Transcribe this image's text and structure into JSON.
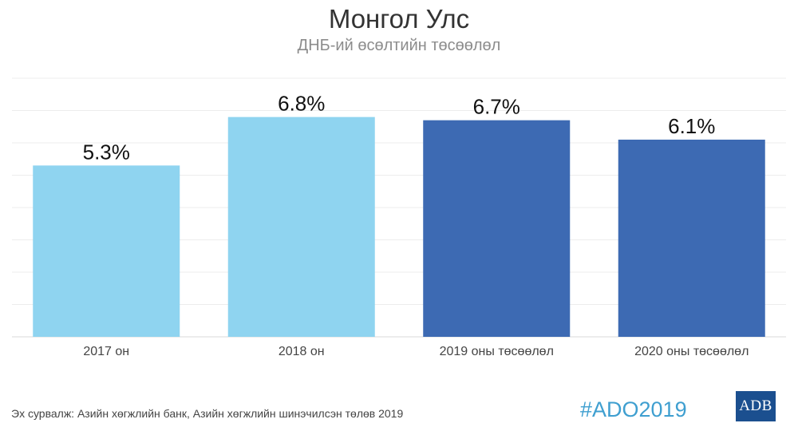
{
  "chart_data": {
    "type": "bar",
    "title": "Монгол Улс",
    "subtitle": "ДНБ-ий өсөлтийн төсөөлөл",
    "categories": [
      "2017 он",
      "2018 он",
      "2019 оны төсөөлөл",
      "2020 оны төсөөлөл"
    ],
    "values": [
      5.3,
      6.8,
      6.7,
      6.1
    ],
    "value_labels": [
      "5.3%",
      "6.8%",
      "6.7%",
      "6.1%"
    ],
    "bar_colors": [
      "#8fd4f0",
      "#8fd4f0",
      "#3d6ab3",
      "#3d6ab3"
    ],
    "ylim": [
      0,
      8
    ],
    "grid": true,
    "xlabel": "",
    "ylabel": ""
  },
  "footer": {
    "source": "Эх сурвалж: Азийн хөгжлийн банк, Азийн хөгжлийн шинэчилсэн төлөв 2019",
    "hashtag": "#ADO2019",
    "logo_text": "ADB"
  }
}
